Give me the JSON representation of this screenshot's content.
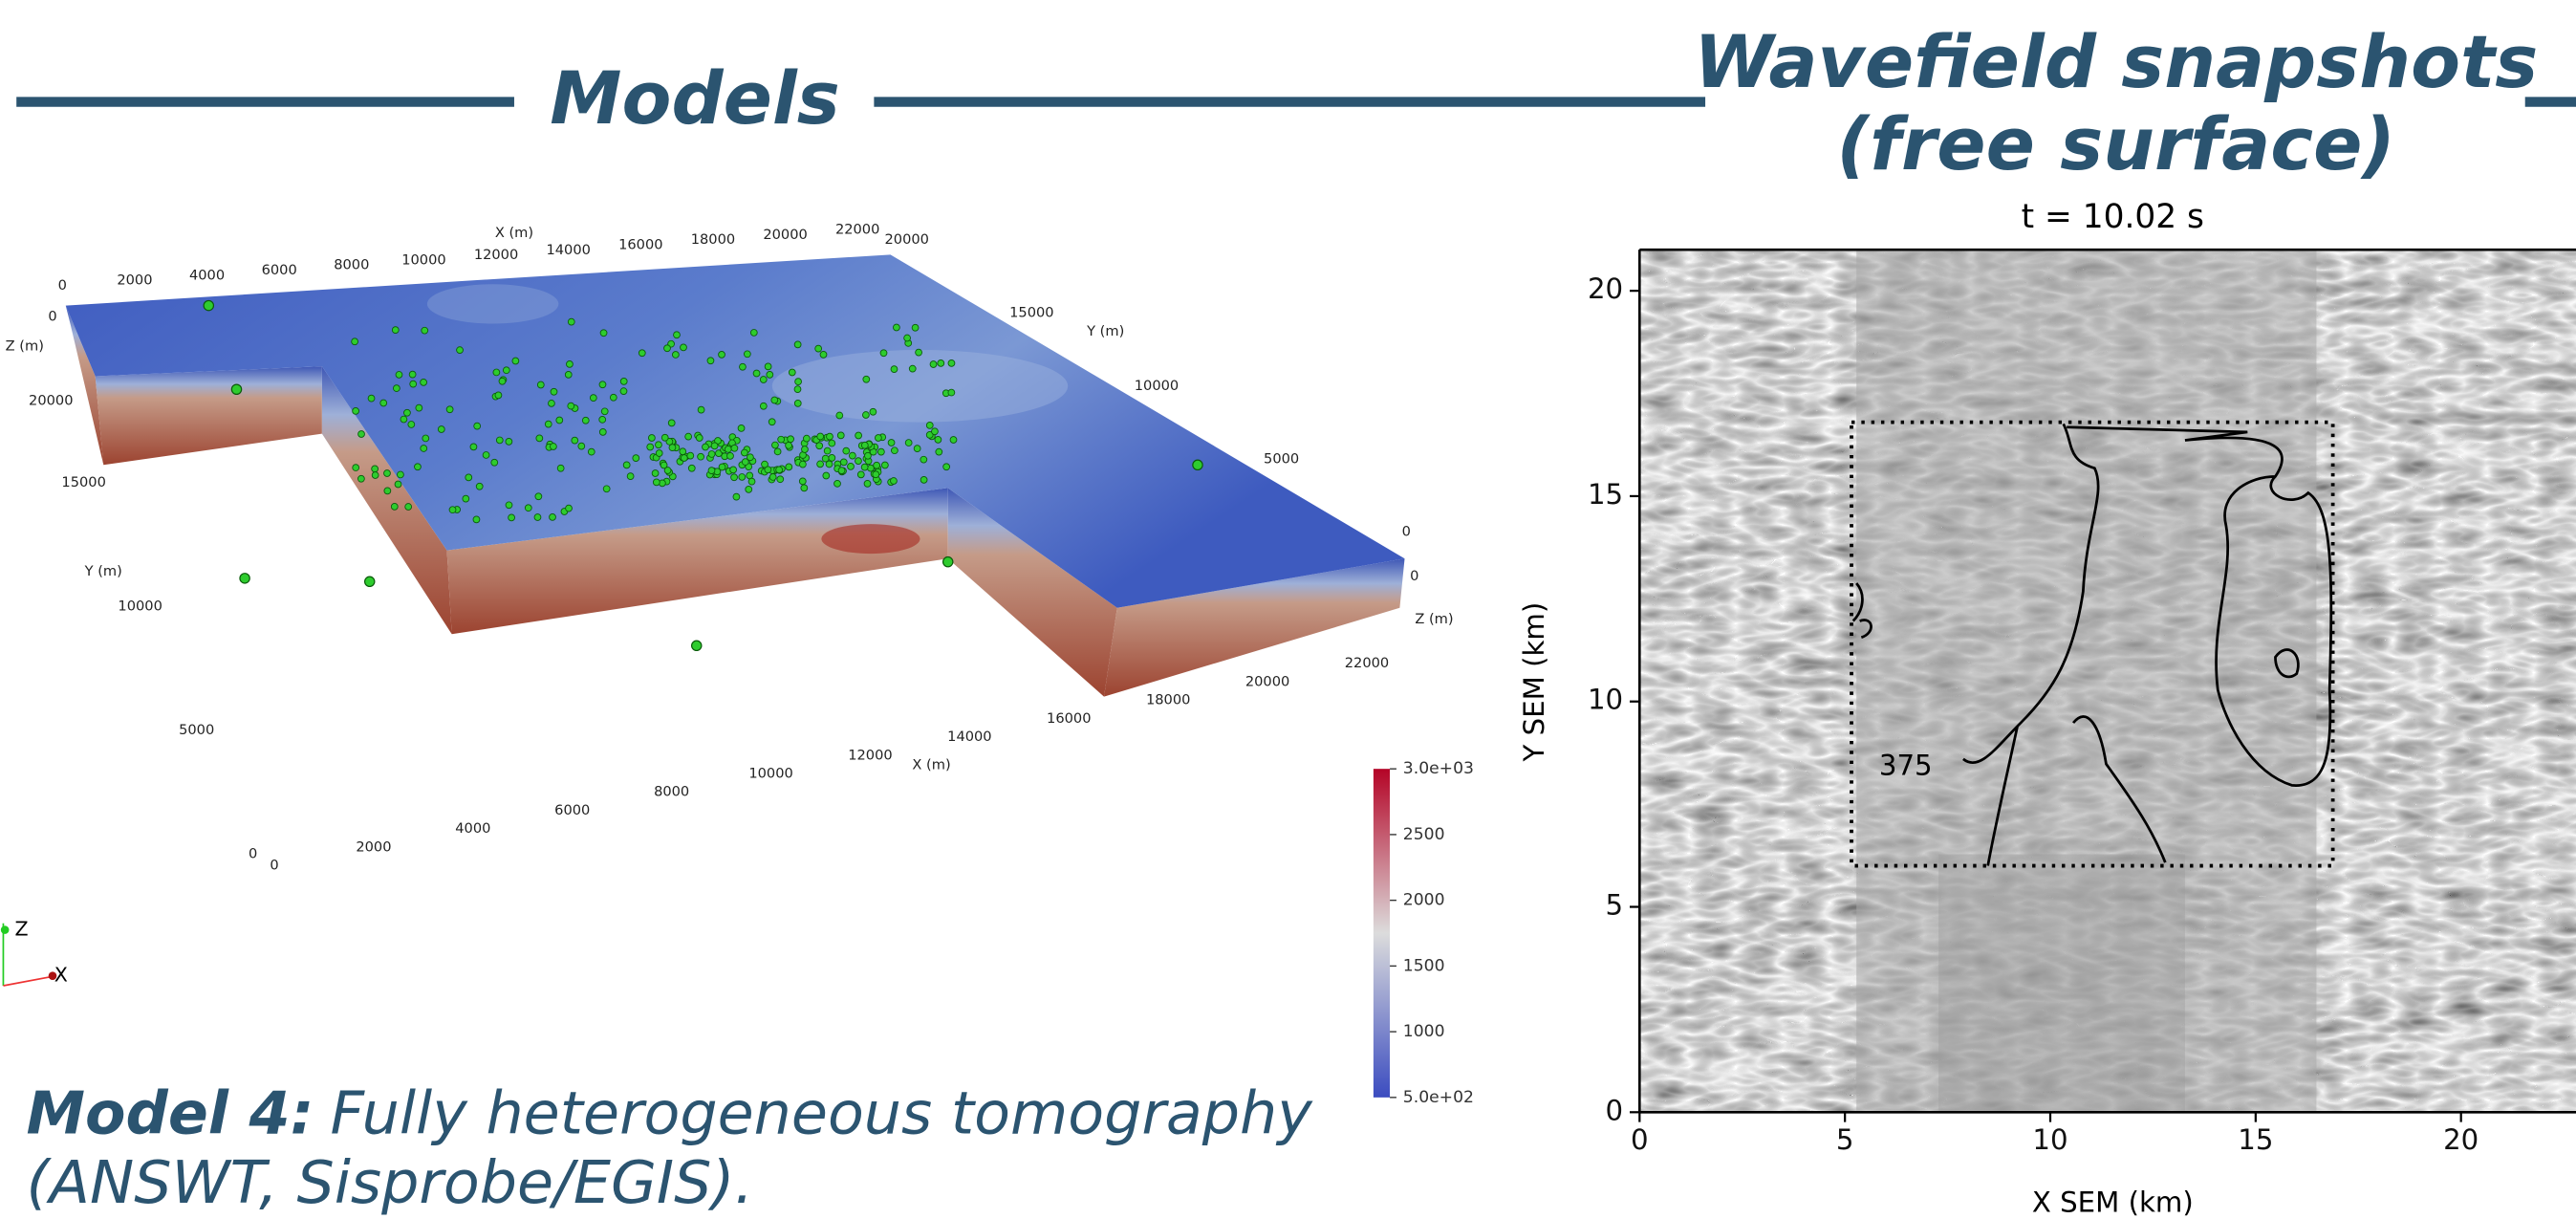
{
  "headers": {
    "models": "Models",
    "wavefield": [
      "Wavefield snapshots",
      "(free surface)"
    ]
  },
  "caption": {
    "bold": "Model 4:",
    "text": [
      "Fully heterogeneous tomography",
      "(ANSWT, Sisprobe/EGIS)."
    ]
  },
  "model_view": {
    "axes": [
      {
        "label": "X (m)",
        "ticks": [
          0,
          2000,
          4000,
          6000,
          8000,
          10000,
          12000,
          14000,
          16000,
          18000,
          20000,
          22000
        ]
      },
      {
        "label": "X (m)",
        "ticks": [
          0,
          2000,
          4000,
          6000,
          8000,
          10000,
          12000,
          14000,
          16000,
          18000,
          20000,
          22000
        ]
      },
      {
        "label": "Y (m)",
        "ticks": [
          0,
          5000,
          10000,
          15000,
          20000
        ]
      },
      {
        "label": "Y (m)",
        "ticks": [
          0,
          5000,
          10000,
          15000
        ]
      },
      {
        "label": "Z (m)",
        "ticks": [
          0,
          20000
        ]
      },
      {
        "label": "Z (m)",
        "ticks": [
          0
        ]
      }
    ],
    "colorbar": {
      "range": [
        500,
        3000
      ],
      "ticks": [
        {
          "value": 3000,
          "label": "3.0e+03"
        },
        2500,
        2000,
        1500,
        1000,
        {
          "value": 500,
          "label": "5.0e+02"
        }
      ]
    },
    "triad": [
      "Z",
      "X"
    ]
  },
  "snapshot": {
    "title": "t = 10.02 s",
    "xlabel": "X SEM (km)",
    "ylabel": "Y SEM (km)",
    "xlim": [
      0,
      22.8
    ],
    "ylim": [
      0,
      21
    ],
    "xticks": [
      0,
      5,
      10,
      15,
      20
    ],
    "yticks": [
      0,
      5,
      10,
      15,
      20
    ],
    "contour_label": "375"
  }
}
